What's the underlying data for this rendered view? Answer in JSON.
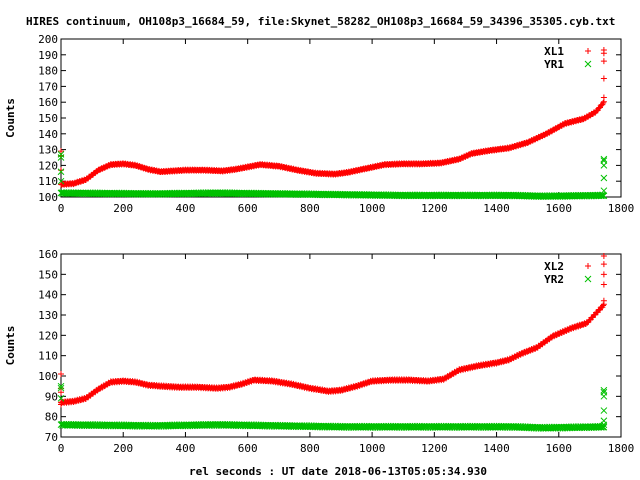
{
  "chart_data": [
    {
      "type": "scatter",
      "title": "HIRES continuum, OH108p3_16684_59, file:Skynet_58282_OH108p3_16684_59_34396_35305.cyb.txt",
      "xlabel": "",
      "ylabel": "Counts",
      "xlim": [
        0,
        1800
      ],
      "ylim": [
        100,
        200
      ],
      "x_ticks": [
        "0",
        "200",
        "400",
        "600",
        "800",
        "1000",
        "1200",
        "1400",
        "1600",
        "1800"
      ],
      "y_ticks": [
        "100",
        "110",
        "120",
        "130",
        "140",
        "150",
        "160",
        "170",
        "180",
        "190",
        "200"
      ],
      "grid": false,
      "legend_position": "top-right",
      "series": [
        {
          "name": "XL1",
          "marker": "+",
          "color": "#ff0000",
          "baseline": [
            [
              0,
              108
            ],
            [
              40,
              108.5
            ],
            [
              80,
              111
            ],
            [
              120,
              117
            ],
            [
              160,
              120.5
            ],
            [
              200,
              121
            ],
            [
              240,
              120
            ],
            [
              280,
              117.5
            ],
            [
              320,
              116
            ],
            [
              360,
              116.5
            ],
            [
              400,
              117
            ],
            [
              460,
              117
            ],
            [
              520,
              116.5
            ],
            [
              560,
              117.5
            ],
            [
              600,
              119
            ],
            [
              640,
              120.5
            ],
            [
              700,
              119.5
            ],
            [
              760,
              117
            ],
            [
              820,
              115
            ],
            [
              880,
              114.5
            ],
            [
              920,
              115.5
            ],
            [
              980,
              118
            ],
            [
              1040,
              120.5
            ],
            [
              1100,
              121
            ],
            [
              1160,
              121
            ],
            [
              1220,
              121.5
            ],
            [
              1280,
              124
            ],
            [
              1320,
              127.5
            ],
            [
              1380,
              129.5
            ],
            [
              1440,
              131
            ],
            [
              1500,
              134.5
            ],
            [
              1560,
              140
            ],
            [
              1620,
              146.5
            ],
            [
              1680,
              149.5
            ],
            [
              1720,
              154
            ],
            [
              1745,
              160
            ]
          ],
          "outliers": [
            [
              0,
              117
            ],
            [
              0,
              126
            ],
            [
              0,
              129
            ],
            [
              1745,
              163
            ],
            [
              1745,
              175
            ],
            [
              1745,
              186
            ],
            [
              1745,
              191
            ],
            [
              1745,
              193
            ]
          ]
        },
        {
          "name": "YR1",
          "marker": "x",
          "color": "#00c000",
          "baseline": [
            [
              0,
              102.5
            ],
            [
              300,
              102
            ],
            [
              500,
              102.5
            ],
            [
              700,
              102
            ],
            [
              900,
              101.5
            ],
            [
              1100,
              101
            ],
            [
              1300,
              101
            ],
            [
              1450,
              101
            ],
            [
              1550,
              100.5
            ],
            [
              1745,
              101
            ]
          ],
          "outliers": [
            [
              0,
              110
            ],
            [
              0,
              116
            ],
            [
              0,
              125
            ],
            [
              0,
              127
            ],
            [
              1745,
              104
            ],
            [
              1745,
              112
            ],
            [
              1745,
              120
            ],
            [
              1745,
              123
            ],
            [
              1745,
              124
            ]
          ]
        }
      ]
    },
    {
      "type": "scatter",
      "title": "",
      "xlabel": "rel seconds : UT date 2018-06-13T05:05:34.930",
      "ylabel": "Counts",
      "xlim": [
        0,
        1800
      ],
      "ylim": [
        70,
        160
      ],
      "x_ticks": [
        "0",
        "200",
        "400",
        "600",
        "800",
        "1000",
        "1200",
        "1400",
        "1600",
        "1800"
      ],
      "y_ticks": [
        "70",
        "80",
        "90",
        "100",
        "110",
        "120",
        "130",
        "140",
        "150",
        "160"
      ],
      "grid": false,
      "legend_position": "top-right",
      "series": [
        {
          "name": "XL2",
          "marker": "+",
          "color": "#ff0000",
          "baseline": [
            [
              0,
              87
            ],
            [
              40,
              87.5
            ],
            [
              80,
              89
            ],
            [
              120,
              93.5
            ],
            [
              160,
              97
            ],
            [
              200,
              97.5
            ],
            [
              240,
              97
            ],
            [
              280,
              95.5
            ],
            [
              320,
              95
            ],
            [
              380,
              94.5
            ],
            [
              440,
              94.5
            ],
            [
              500,
              94
            ],
            [
              540,
              94.5
            ],
            [
              580,
              96
            ],
            [
              620,
              98
            ],
            [
              680,
              97.5
            ],
            [
              740,
              96
            ],
            [
              800,
              94
            ],
            [
              860,
              92.5
            ],
            [
              900,
              93
            ],
            [
              950,
              95
            ],
            [
              1000,
              97.5
            ],
            [
              1060,
              98
            ],
            [
              1120,
              98
            ],
            [
              1180,
              97.5
            ],
            [
              1230,
              98.5
            ],
            [
              1280,
              103
            ],
            [
              1340,
              105
            ],
            [
              1400,
              106.5
            ],
            [
              1440,
              108
            ],
            [
              1480,
              111
            ],
            [
              1530,
              114
            ],
            [
              1580,
              119.5
            ],
            [
              1640,
              123.5
            ],
            [
              1690,
              126
            ],
            [
              1745,
              135
            ]
          ],
          "outliers": [
            [
              0,
              86
            ],
            [
              0,
              92
            ],
            [
              0,
              94
            ],
            [
              0,
              101
            ],
            [
              1745,
              137
            ],
            [
              1745,
              145
            ],
            [
              1745,
              150
            ],
            [
              1745,
              155
            ],
            [
              1745,
              159
            ]
          ]
        },
        {
          "name": "YR2",
          "marker": "x",
          "color": "#00c000",
          "baseline": [
            [
              0,
              76
            ],
            [
              300,
              75.5
            ],
            [
              500,
              76
            ],
            [
              700,
              75.5
            ],
            [
              900,
              75
            ],
            [
              1100,
              75
            ],
            [
              1300,
              75
            ],
            [
              1450,
              75
            ],
            [
              1550,
              74.5
            ],
            [
              1745,
              75
            ]
          ],
          "outliers": [
            [
              0,
              89
            ],
            [
              0,
              94
            ],
            [
              0,
              95
            ],
            [
              1745,
              76
            ],
            [
              1745,
              78
            ],
            [
              1745,
              83
            ],
            [
              1745,
              90
            ],
            [
              1745,
              92
            ],
            [
              1745,
              93
            ]
          ]
        }
      ]
    }
  ]
}
